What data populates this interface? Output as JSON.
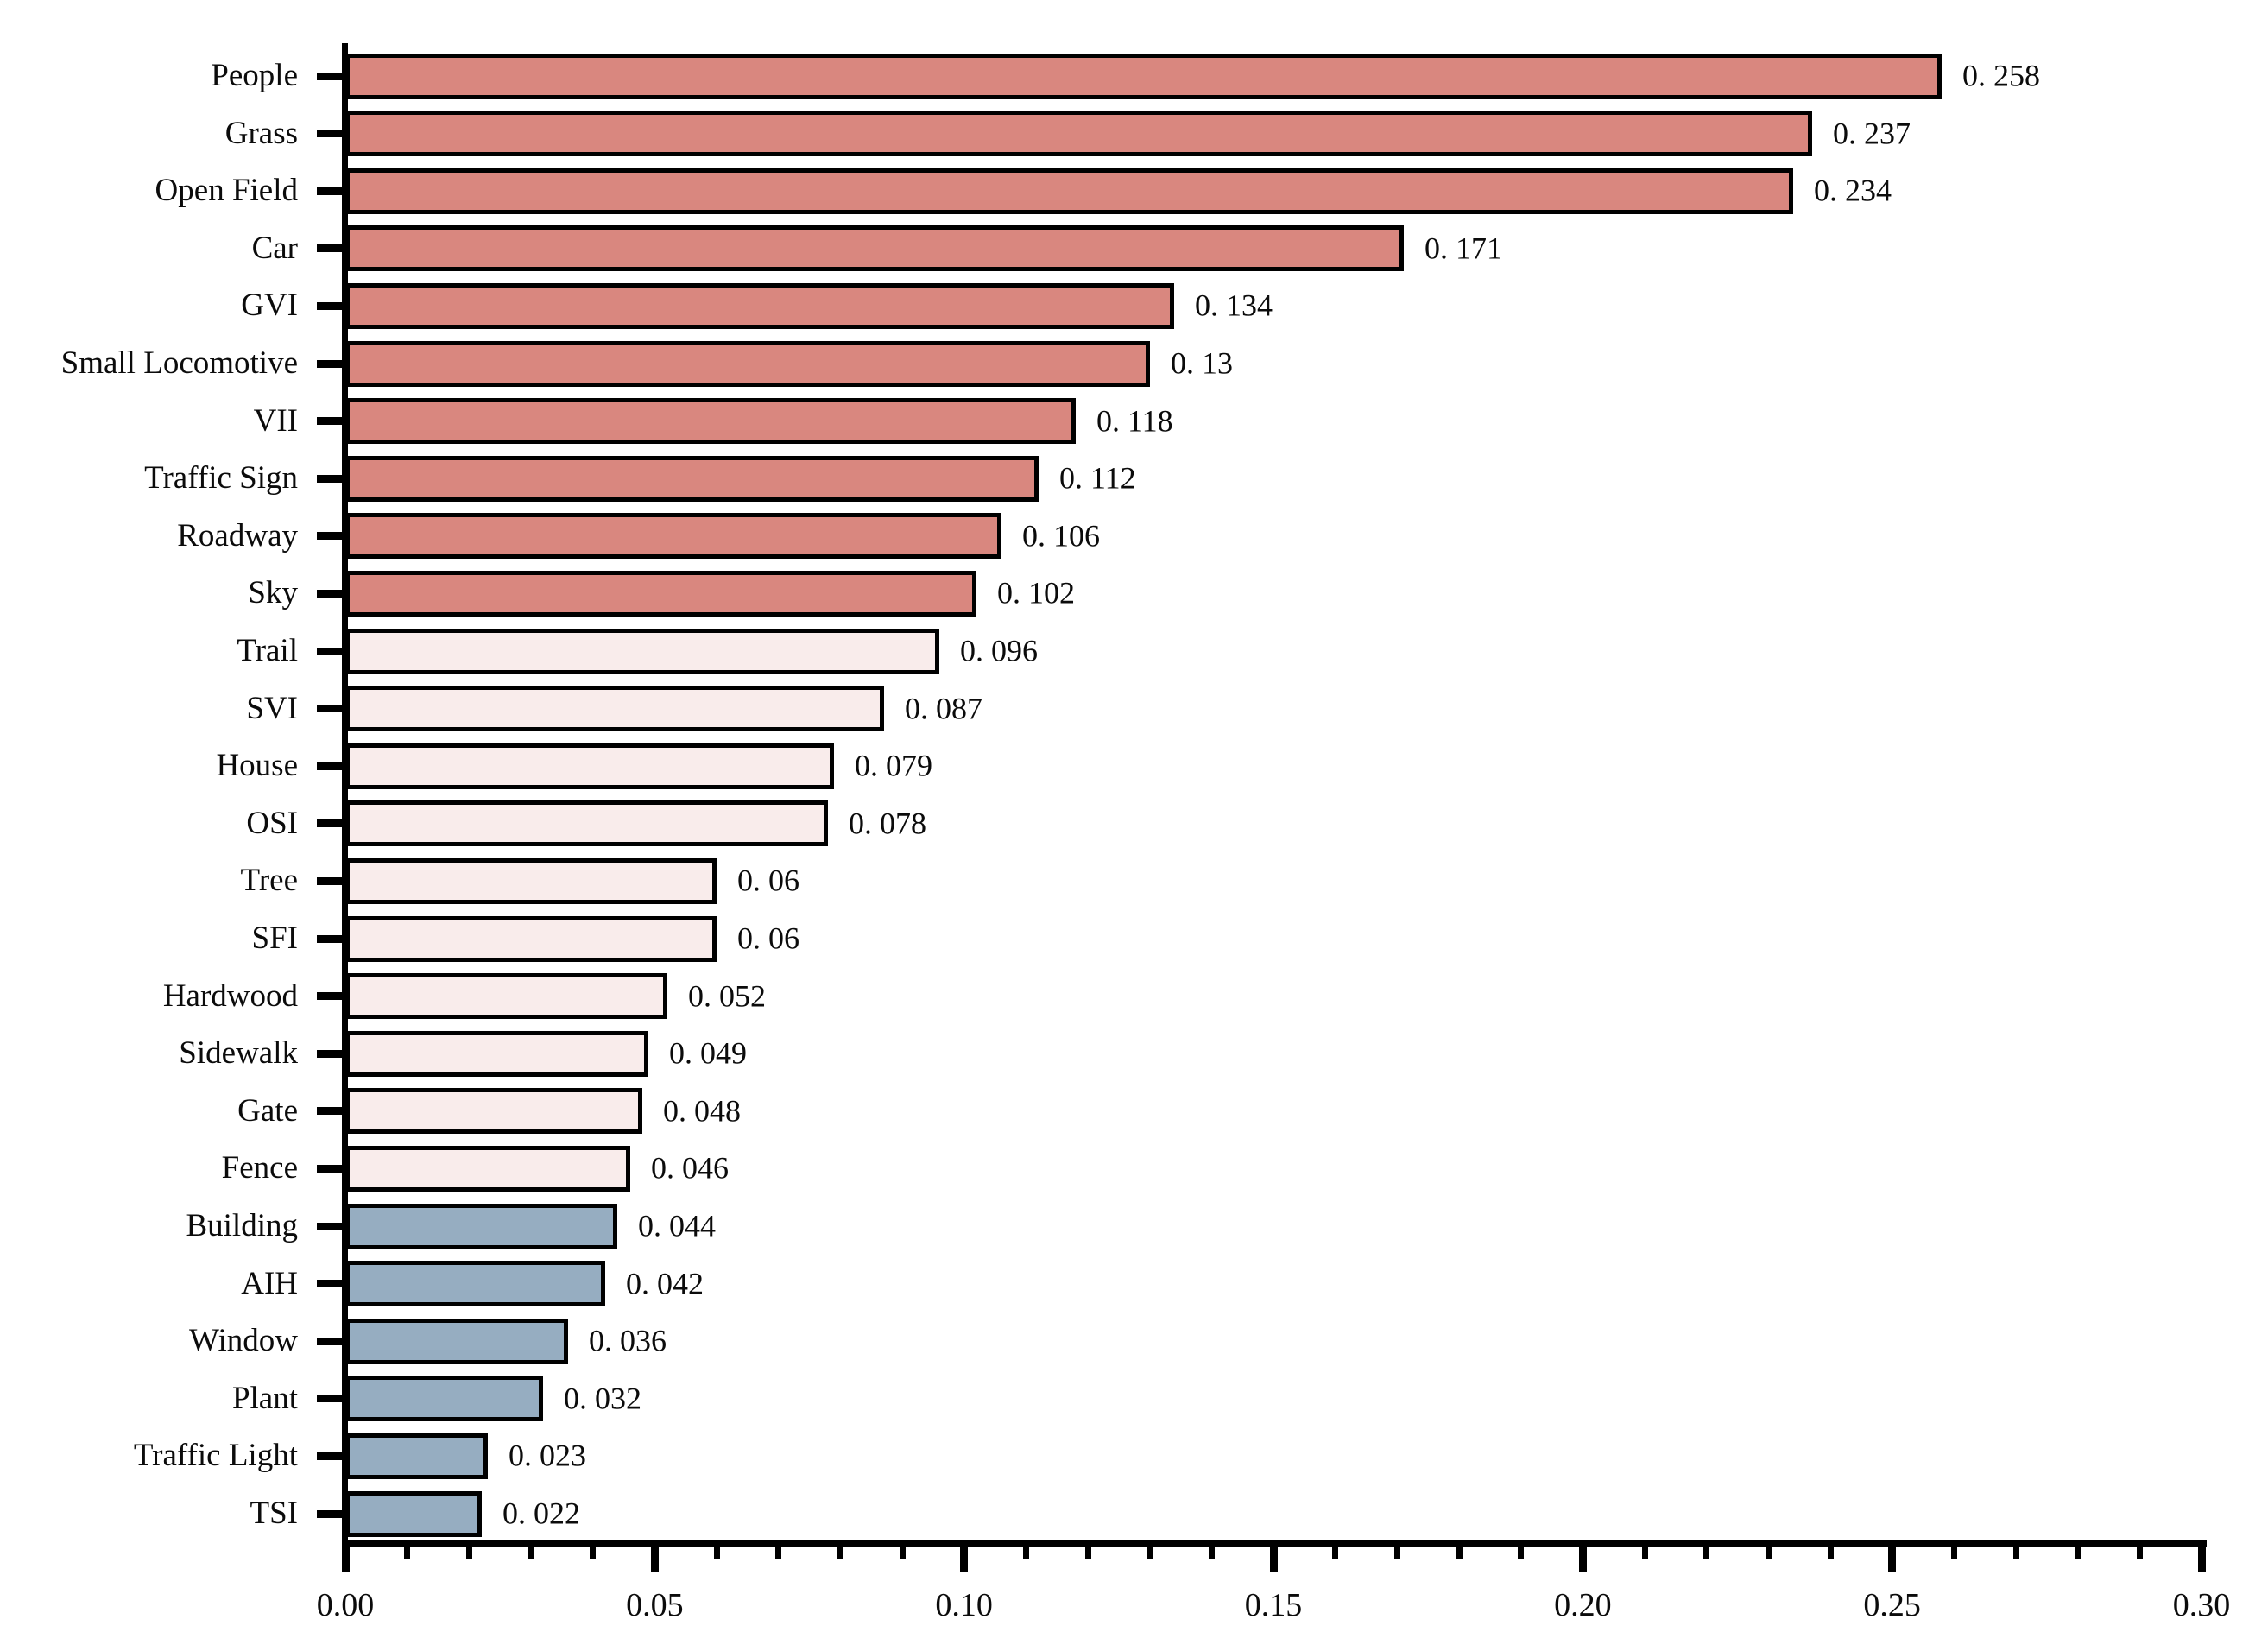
{
  "chart_data": {
    "type": "bar",
    "orientation": "horizontal",
    "title": "",
    "xlabel": "",
    "ylabel": "",
    "grid": false,
    "legend": "none",
    "xlim": [
      0.0,
      0.3
    ],
    "x_major_tick_step": 0.05,
    "x_minor_tick_step": 0.01,
    "x_tick_labels": [
      "0.00",
      "0.05",
      "0.10",
      "0.15",
      "0.20",
      "0.25",
      "0.30"
    ],
    "categories": [
      "People",
      "Grass",
      "Open Field",
      "Car",
      "GVI",
      "Small Locomotive",
      "VII",
      "Traffic Sign",
      "Roadway",
      "Sky",
      "Trail",
      "SVI",
      "House",
      "OSI",
      "Tree",
      "SFI",
      "Hardwood",
      "Sidewalk",
      "Gate",
      "Fence",
      "Building",
      "AIH",
      "Window",
      "Plant",
      "Traffic Light",
      "TSI"
    ],
    "values": [
      0.258,
      0.237,
      0.234,
      0.171,
      0.134,
      0.13,
      0.118,
      0.112,
      0.106,
      0.102,
      0.096,
      0.087,
      0.079,
      0.078,
      0.06,
      0.06,
      0.052,
      0.049,
      0.048,
      0.046,
      0.044,
      0.042,
      0.036,
      0.032,
      0.023,
      0.022
    ],
    "value_labels": [
      "0. 258",
      "0. 237",
      "0. 234",
      "0. 171",
      "0. 134",
      "0. 13",
      "0. 118",
      "0. 112",
      "0. 106",
      "0. 102",
      "0. 096",
      "0. 087",
      "0. 079",
      "0. 078",
      "0. 06",
      "0. 06",
      "0. 052",
      "0. 049",
      "0. 048",
      "0. 046",
      "0. 044",
      "0. 042",
      "0. 036",
      "0. 032",
      "0. 023",
      "0. 022"
    ],
    "groups": [
      "high",
      "high",
      "high",
      "high",
      "high",
      "high",
      "high",
      "high",
      "high",
      "high",
      "mid",
      "mid",
      "mid",
      "mid",
      "mid",
      "mid",
      "mid",
      "mid",
      "mid",
      "mid",
      "low",
      "low",
      "low",
      "low",
      "low",
      "low"
    ],
    "colors": {
      "high": "#d9877f",
      "mid": "#f9eceb",
      "low": "#96adc1",
      "bar_border": "#000000",
      "axis": "#000000",
      "text": "#0b0b0b",
      "background": "#ffffff"
    }
  }
}
